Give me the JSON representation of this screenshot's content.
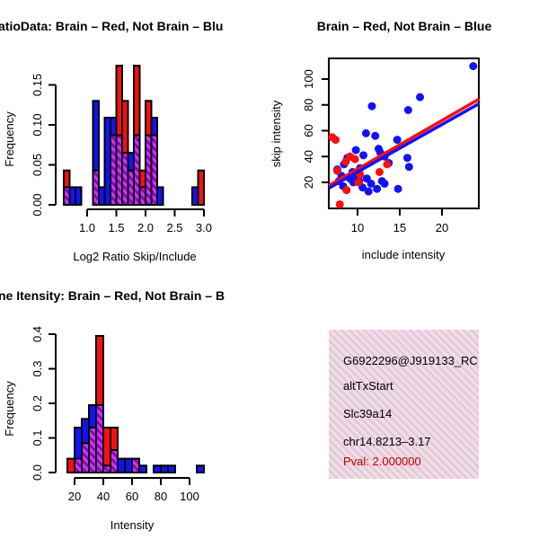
{
  "colors": {
    "red": "#F8100E",
    "blue": "#1412F2",
    "purple_base": "#8B00C7",
    "purple_stripe": "#C93CE8",
    "axis_black": "#000000",
    "pval_red": "#C00000",
    "info_text_black": "#000000",
    "info_bg_pink": "#F3D9EE"
  },
  "chart_data": [
    {
      "id": "log2-ratio-histogram",
      "type": "bar",
      "title": "atioData: Brain – Red, Not Brain – Blu",
      "xlabel": "Log2 Ratio Skip/Include",
      "ylabel": "Frequency",
      "x_ticks": [
        "1.0",
        "1.5",
        "2.0",
        "2.5",
        "3.0"
      ],
      "x_tick_values": [
        1.0,
        1.5,
        2.0,
        2.5,
        3.0
      ],
      "y_ticks": [
        "0.00",
        "0.05",
        "0.10",
        "0.15"
      ],
      "y_tick_values": [
        0,
        0.05,
        0.1,
        0.15
      ],
      "xlim": [
        0.52,
        3.08
      ],
      "ylim": [
        0,
        0.182
      ],
      "bin_width": 0.1,
      "legend_note": "red = Brain, blue = Not Brain, purple hatch = overlap",
      "bars": [
        {
          "x": 0.6,
          "color": "red",
          "h": 0.043,
          "overlap": 0.022
        },
        {
          "x": 0.7,
          "color": "blue",
          "h": 0.022,
          "overlap": 0
        },
        {
          "x": 0.8,
          "color": "blue",
          "h": 0.022,
          "overlap": 0
        },
        {
          "x": 1.1,
          "color": "blue",
          "h": 0.13,
          "overlap": 0.043
        },
        {
          "x": 1.2,
          "color": "blue",
          "h": 0.022,
          "overlap": 0
        },
        {
          "x": 1.3,
          "color": "blue",
          "h": 0.109,
          "overlap": 0
        },
        {
          "x": 1.4,
          "color": "blue",
          "h": 0.109,
          "overlap": 0.087
        },
        {
          "x": 1.5,
          "color": "red",
          "h": 0.174,
          "overlap": 0.087
        },
        {
          "x": 1.6,
          "color": "red",
          "h": 0.13,
          "overlap": 0.065
        },
        {
          "x": 1.7,
          "color": "blue",
          "h": 0.065,
          "overlap": 0.043
        },
        {
          "x": 1.8,
          "color": "red",
          "h": 0.174,
          "overlap": 0.087
        },
        {
          "x": 1.9,
          "color": "red",
          "h": 0.043,
          "overlap": 0.022
        },
        {
          "x": 2.0,
          "color": "red",
          "h": 0.13,
          "overlap": 0.087
        },
        {
          "x": 2.1,
          "color": "blue",
          "h": 0.109,
          "overlap": 0.087
        },
        {
          "x": 2.2,
          "color": "blue",
          "h": 0.022,
          "overlap": 0
        },
        {
          "x": 2.8,
          "color": "blue",
          "h": 0.022,
          "overlap": 0
        },
        {
          "x": 2.9,
          "color": "red",
          "h": 0.043,
          "overlap": 0
        }
      ]
    },
    {
      "id": "intensity-scatter",
      "type": "scatter",
      "title": "Brain – Red, Not Brain – Blue",
      "xlabel": "include intensity",
      "ylabel": "skip intensity",
      "x_ticks": [
        "10",
        "15",
        "20"
      ],
      "x_tick_values": [
        10,
        15,
        20
      ],
      "y_ticks": [
        "20",
        "40",
        "60",
        "80",
        "100"
      ],
      "y_tick_values": [
        20,
        40,
        60,
        80,
        100
      ],
      "xlim": [
        6.6,
        24.4
      ],
      "ylim": [
        0,
        115
      ],
      "series": [
        {
          "name": "Not Brain",
          "color": "blue",
          "points": [
            [
              23.7,
              110
            ],
            [
              17.4,
              86
            ],
            [
              11.7,
              79
            ],
            [
              16.0,
              76
            ],
            [
              11.0,
              58
            ],
            [
              12.1,
              56
            ],
            [
              14.7,
              53
            ],
            [
              9.8,
              45
            ],
            [
              12.5,
              46
            ],
            [
              12.7,
              43
            ],
            [
              10.7,
              41
            ],
            [
              13.2,
              40
            ],
            [
              15.9,
              39
            ],
            [
              8.8,
              39
            ],
            [
              13.7,
              35
            ],
            [
              8.4,
              34
            ],
            [
              16.1,
              32
            ],
            [
              10.3,
              31
            ],
            [
              7.6,
              30
            ],
            [
              9.9,
              28
            ],
            [
              9.4,
              28
            ],
            [
              8.1,
              25
            ],
            [
              9.9,
              24
            ],
            [
              9.1,
              23
            ],
            [
              11.1,
              23
            ],
            [
              7.8,
              21
            ],
            [
              10.2,
              21
            ],
            [
              12.9,
              21
            ],
            [
              9.5,
              20
            ],
            [
              11.6,
              19
            ],
            [
              13.2,
              19
            ],
            [
              8.3,
              17
            ],
            [
              10.6,
              16
            ],
            [
              12.3,
              15
            ],
            [
              14.8,
              15
            ],
            [
              11.3,
              13
            ]
          ]
        },
        {
          "name": "Brain",
          "color": "red",
          "points": [
            [
              7.0,
              55
            ],
            [
              7.4,
              53
            ],
            [
              9.1,
              40
            ],
            [
              9.7,
              38
            ],
            [
              8.6,
              36
            ],
            [
              13.5,
              34
            ],
            [
              7.6,
              29
            ],
            [
              12.6,
              28
            ],
            [
              10.3,
              26
            ],
            [
              10.1,
              20
            ],
            [
              8.7,
              14
            ],
            [
              7.9,
              3
            ]
          ]
        }
      ],
      "fit_lines": [
        {
          "color": "red",
          "x1": 6.6,
          "y1": 17.5,
          "x2": 24.4,
          "y2": 84.5
        },
        {
          "color": "blue",
          "x1": 6.6,
          "y1": 15.5,
          "x2": 24.4,
          "y2": 81.0
        }
      ]
    },
    {
      "id": "gene-intensity-histogram",
      "type": "bar",
      "title": "ne Itensity: Brain – Red, Not Brain – B",
      "xlabel": "Intensity",
      "ylabel": "Frequency",
      "x_ticks": [
        "20",
        "40",
        "60",
        "80",
        "100"
      ],
      "x_tick_values": [
        20,
        40,
        60,
        80,
        100
      ],
      "y_ticks": [
        "0.0",
        "0.1",
        "0.2",
        "0.3",
        "0.4"
      ],
      "y_tick_values": [
        0,
        0.1,
        0.2,
        0.3,
        0.4
      ],
      "xlim": [
        12,
        112
      ],
      "ylim": [
        0,
        0.41
      ],
      "bin_width": 5,
      "legend_note": "red = Brain, blue = Not Brain, purple hatch = overlap",
      "bars": [
        {
          "x": 15,
          "color": "red",
          "h": 0.04,
          "overlap": 0
        },
        {
          "x": 20,
          "color": "blue",
          "h": 0.13,
          "overlap": 0.04
        },
        {
          "x": 25,
          "color": "blue",
          "h": 0.155,
          "overlap": 0.085
        },
        {
          "x": 30,
          "color": "blue",
          "h": 0.195,
          "overlap": 0.13
        },
        {
          "x": 35,
          "color": "red",
          "h": 0.395,
          "overlap": 0.195
        },
        {
          "x": 40,
          "color": "red",
          "h": 0.13,
          "overlap": 0.02
        },
        {
          "x": 45,
          "color": "red",
          "h": 0.13,
          "overlap": 0.065
        },
        {
          "x": 50,
          "color": "blue",
          "h": 0.04,
          "overlap": 0
        },
        {
          "x": 55,
          "color": "blue",
          "h": 0.04,
          "overlap": 0
        },
        {
          "x": 60,
          "color": "purple",
          "h": 0.04,
          "overlap": 0.04
        },
        {
          "x": 65,
          "color": "blue",
          "h": 0.02,
          "overlap": 0
        },
        {
          "x": 75,
          "color": "blue",
          "h": 0.02,
          "overlap": 0
        },
        {
          "x": 80,
          "color": "blue",
          "h": 0.02,
          "overlap": 0
        },
        {
          "x": 85,
          "color": "blue",
          "h": 0.02,
          "overlap": 0
        },
        {
          "x": 105,
          "color": "blue",
          "h": 0.02,
          "overlap": 0
        }
      ]
    }
  ],
  "info_box": {
    "lines": [
      {
        "text": "G6922296@J919133_RC",
        "color": "#000000"
      },
      {
        "text": "altTxStart",
        "color": "#000000"
      },
      {
        "text": "Slc39a14",
        "color": "#000000"
      },
      {
        "text": "chr14.8213–3.17",
        "color": "#000000"
      },
      {
        "text": "Pval: 2.000000",
        "color": "#C00000"
      }
    ]
  }
}
